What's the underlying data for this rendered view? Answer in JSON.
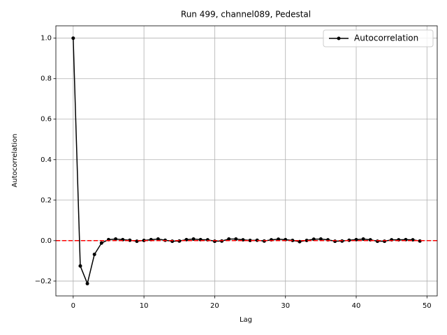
{
  "chart_data": {
    "type": "line",
    "title": "Run 499, channel089, Pedestal",
    "xlabel": "Lag",
    "ylabel": "Autocorrelation",
    "x": [
      0,
      1,
      2,
      3,
      4,
      5,
      6,
      7,
      8,
      9,
      10,
      11,
      12,
      13,
      14,
      15,
      16,
      17,
      18,
      19,
      20,
      21,
      22,
      23,
      24,
      25,
      26,
      27,
      28,
      29,
      30,
      31,
      32,
      33,
      34,
      35,
      36,
      37,
      38,
      39,
      40,
      41,
      42,
      43,
      44,
      45,
      46,
      47,
      48,
      49
    ],
    "series": [
      {
        "name": "Autocorrelation",
        "color": "#000000",
        "values": [
          1.0,
          -0.125,
          -0.212,
          -0.068,
          -0.012,
          0.005,
          0.008,
          0.005,
          0.002,
          -0.003,
          0.001,
          0.005,
          0.008,
          0.002,
          -0.003,
          -0.002,
          0.005,
          0.008,
          0.005,
          0.004,
          -0.003,
          -0.002,
          0.008,
          0.008,
          0.004,
          0.001,
          0.002,
          -0.002,
          0.004,
          0.007,
          0.005,
          0.001,
          -0.005,
          0.001,
          0.007,
          0.008,
          0.004,
          -0.003,
          -0.002,
          0.002,
          0.005,
          0.008,
          0.004,
          -0.003,
          -0.003,
          0.004,
          0.004,
          0.005,
          0.004,
          -0.002
        ]
      }
    ],
    "reference_line": {
      "value": 0,
      "color": "#ff0000"
    },
    "xlim": [
      -2.45,
      51.45
    ],
    "xticks": [
      0,
      10,
      20,
      30,
      40,
      50
    ],
    "ylim": [
      -0.273,
      1.061
    ],
    "yticks": [
      {
        "value": -0.2,
        "label": "−0.2"
      },
      {
        "value": 0,
        "label": "0.0"
      },
      {
        "value": 0.2,
        "label": "0.2"
      },
      {
        "value": 0.4,
        "label": "0.4"
      },
      {
        "value": 0.6,
        "label": "0.6"
      },
      {
        "value": 0.8,
        "label": "0.8"
      },
      {
        "value": 1.0,
        "label": "1.0"
      }
    ],
    "grid": true,
    "legend": "upper right"
  }
}
